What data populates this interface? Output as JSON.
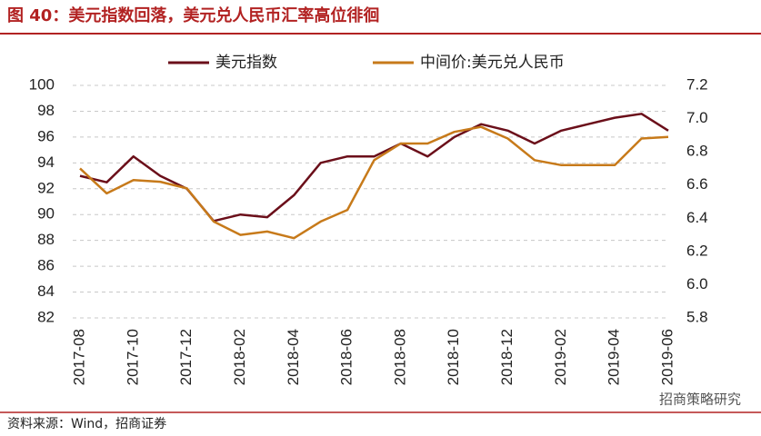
{
  "chart_data": {
    "type": "line",
    "title": "图 40：美元指数回落，美元兑人民币汇率高位徘徊",
    "source": "资料来源：Wind，招商证券",
    "watermark": "招商策略研究",
    "x": [
      "2017-08",
      null,
      "2017-10",
      null,
      "2017-12",
      null,
      "2018-02",
      null,
      "2018-04",
      null,
      "2018-06",
      null,
      "2018-08",
      null,
      "2018-10",
      null,
      "2018-12",
      null,
      "2019-02",
      null,
      "2019-04",
      null,
      "2019-06"
    ],
    "series": [
      {
        "name": "美元指数",
        "color": "#6b0f1a",
        "values": [
          93,
          92.5,
          94.5,
          93,
          92,
          89.5,
          90,
          89.8,
          91.5,
          94,
          94.5,
          94.5,
          95.5,
          94.5,
          96,
          97,
          96.5,
          95.5,
          96.5,
          97,
          97.5,
          97.8,
          96.5
        ]
      },
      {
        "name": "中间价:美元兑人民币",
        "color": "#c77a1a",
        "axis": "y2",
        "values": [
          6.7,
          6.55,
          6.63,
          6.62,
          6.58,
          6.38,
          6.3,
          6.32,
          6.28,
          6.38,
          6.45,
          6.75,
          6.85,
          6.85,
          6.92,
          6.95,
          6.88,
          6.75,
          6.72,
          6.72,
          6.72,
          6.88,
          6.89
        ]
      }
    ],
    "ylim": [
      82,
      100
    ],
    "yticks": [
      82,
      84,
      86,
      88,
      90,
      92,
      94,
      96,
      98,
      100
    ],
    "y2lim": [
      5.8,
      7.2
    ],
    "y2ticks": [
      5.8,
      {
        "value": 6,
        "label": "6.0"
      },
      6.2,
      6.4,
      6.6,
      6.8,
      {
        "value": 7,
        "label": "7.0"
      },
      7.2
    ],
    "grid": true
  }
}
